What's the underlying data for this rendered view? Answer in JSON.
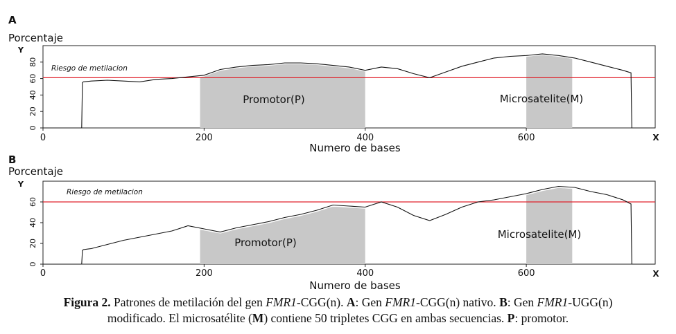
{
  "chart_data": [
    {
      "type": "area",
      "panel_letter": "A",
      "ylabel": "Porcentaje",
      "y_axis_letter": "Y",
      "x_axis_letter": "X",
      "xlabel": "Numero de bases",
      "xlim": [
        0,
        760
      ],
      "ylim": [
        0,
        100
      ],
      "x_ticks": [
        0,
        200,
        400,
        600
      ],
      "y_ticks": [
        0,
        20,
        40,
        60,
        80
      ],
      "threshold": {
        "label": "Riesgo de metilacion",
        "y": 61,
        "color": "#e0202a"
      },
      "regions": [
        {
          "label": "Promotor(P)",
          "x_start": 195,
          "x_end": 400
        },
        {
          "label": "Microsatelite(M)",
          "x_start": 600,
          "x_end": 657
        }
      ],
      "series": [
        {
          "x": [
            0,
            48,
            49,
            50,
            60,
            80,
            100,
            120,
            140,
            160,
            180,
            200,
            220,
            240,
            260,
            280,
            300,
            320,
            340,
            360,
            380,
            400,
            420,
            440,
            460,
            480,
            500,
            520,
            540,
            560,
            580,
            600,
            620,
            640,
            660,
            680,
            700,
            720,
            730,
            731,
            760
          ],
          "y": [
            0,
            0,
            55,
            56,
            57,
            58,
            57,
            56,
            59,
            60,
            62,
            64,
            71,
            74,
            76,
            77,
            79,
            79,
            78,
            76,
            74,
            70,
            74,
            72,
            66,
            61,
            68,
            75,
            80,
            85,
            87,
            88,
            90,
            88,
            85,
            80,
            75,
            70,
            67,
            0,
            0
          ]
        }
      ]
    },
    {
      "type": "area",
      "panel_letter": "B",
      "ylabel": "Porcentaje",
      "y_axis_letter": "Y",
      "x_axis_letter": "X",
      "xlabel": "Numero de bases",
      "xlim": [
        0,
        760
      ],
      "ylim": [
        0,
        80
      ],
      "x_ticks": [
        0,
        200,
        400,
        600
      ],
      "y_ticks": [
        0,
        20,
        40,
        60
      ],
      "threshold": {
        "label": "Riesgo de metilacion",
        "y": 60,
        "color": "#e0202a"
      },
      "regions": [
        {
          "label": "Promotor(P)",
          "x_start": 195,
          "x_end": 400
        },
        {
          "label": "Microsatelite(M)",
          "x_start": 600,
          "x_end": 657
        }
      ],
      "series": [
        {
          "x": [
            0,
            48,
            49,
            50,
            60,
            80,
            100,
            120,
            140,
            160,
            180,
            200,
            220,
            240,
            260,
            280,
            300,
            320,
            340,
            360,
            380,
            400,
            420,
            440,
            460,
            480,
            500,
            520,
            540,
            560,
            580,
            600,
            620,
            640,
            660,
            680,
            700,
            720,
            730,
            731,
            760
          ],
          "y": [
            0,
            0,
            13,
            14,
            15,
            19,
            23,
            26,
            29,
            32,
            37,
            34,
            31,
            35,
            38,
            41,
            45,
            48,
            52,
            57,
            56,
            55,
            60,
            55,
            47,
            42,
            48,
            55,
            60,
            62,
            65,
            68,
            72,
            75,
            74,
            70,
            67,
            62,
            58,
            0,
            0
          ]
        }
      ]
    }
  ],
  "caption": {
    "figura": "Figura 2.",
    "t1": " Patrones de metilación del gen ",
    "fmr1_a": "FMR1",
    "t2": "-CGG(n). ",
    "a_letter": "A",
    "t3": ": Gen ",
    "fmr1_b": "FMR1",
    "t4": "-CGG(n) nativo. ",
    "b_letter": "B",
    "t5": ": Gen ",
    "fmr1_c": "FMR1",
    "t6": "-UGG(n)",
    "t7": "modificado. El microsatélite (",
    "m_letter": "M",
    "t8": ") contiene 50 tripletes CGG en ambas secuencias. ",
    "p_letter": "P",
    "t9": ": promotor."
  }
}
